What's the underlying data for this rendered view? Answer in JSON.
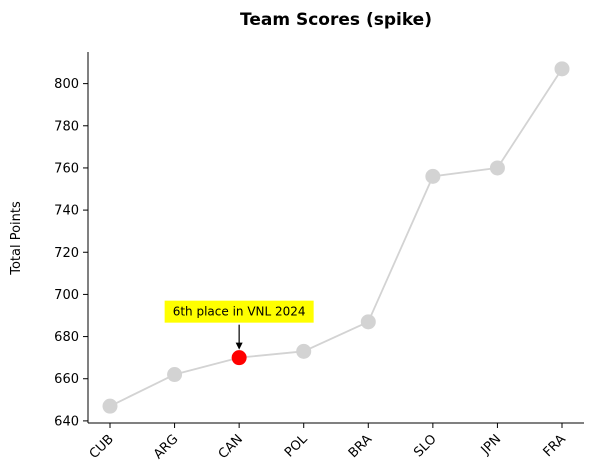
{
  "chart_data": {
    "type": "line",
    "title": "Team Scores (spike)",
    "xlabel": "",
    "ylabel": "Total Points",
    "categories": [
      "CUB",
      "ARG",
      "CAN",
      "POL",
      "BRA",
      "SLO",
      "JPN",
      "FRA"
    ],
    "series": [
      {
        "values": [
          647,
          662,
          670,
          673,
          687,
          756,
          760,
          807
        ]
      }
    ],
    "ylim": [
      639,
      815
    ],
    "yticks": [
      640,
      660,
      680,
      700,
      720,
      740,
      760,
      780,
      800
    ],
    "highlight": {
      "category": "CAN",
      "color": "#ff0000"
    },
    "annotation": {
      "category": "CAN",
      "text": "6th place in VNL 2024",
      "background": "#ffff00"
    },
    "colors": {
      "line": "#d3d3d3",
      "marker": "#d3d3d3",
      "axis": "#000000"
    },
    "grid": false
  }
}
